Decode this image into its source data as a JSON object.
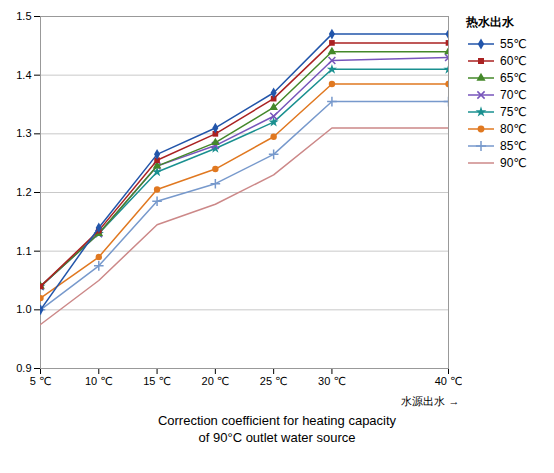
{
  "chart_data": {
    "type": "line",
    "xlabel": "水源出水",
    "legend_title": "热水出水",
    "caption": [
      "Correction coefficient for heating capacity",
      "of 90°C outlet water source"
    ],
    "x": [
      5,
      10,
      15,
      20,
      25,
      30,
      40
    ],
    "series": [
      {
        "name": "55℃",
        "color": "#2255AA",
        "marker": "diamond",
        "values": [
          1.0,
          1.14,
          1.265,
          1.31,
          1.37,
          1.47,
          1.47
        ]
      },
      {
        "name": "60℃",
        "color": "#AA2222",
        "marker": "square",
        "values": [
          1.04,
          1.135,
          1.255,
          1.3,
          1.36,
          1.455,
          1.455
        ]
      },
      {
        "name": "65℃",
        "color": "#44882A",
        "marker": "triangle",
        "values": [
          1.04,
          1.13,
          1.245,
          1.285,
          1.345,
          1.44,
          1.44
        ]
      },
      {
        "name": "70℃",
        "color": "#7755BB",
        "marker": "times",
        "values": [
          1.04,
          1.13,
          1.245,
          1.28,
          1.33,
          1.425,
          1.43
        ]
      },
      {
        "name": "75℃",
        "color": "#1A9090",
        "marker": "star",
        "values": [
          1.04,
          1.13,
          1.235,
          1.275,
          1.32,
          1.41,
          1.41
        ]
      },
      {
        "name": "80℃",
        "color": "#E07820",
        "marker": "circle",
        "values": [
          1.02,
          1.09,
          1.205,
          1.24,
          1.295,
          1.385,
          1.385
        ]
      },
      {
        "name": "85℃",
        "color": "#7799CC",
        "marker": "plus",
        "values": [
          1.0,
          1.075,
          1.185,
          1.215,
          1.265,
          1.355,
          1.355
        ]
      },
      {
        "name": "90℃",
        "color": "#CC8888",
        "marker": "none",
        "values": [
          0.975,
          1.05,
          1.145,
          1.18,
          1.23,
          1.31,
          1.31
        ]
      }
    ],
    "xlim": [
      5,
      40
    ],
    "xticks": [
      {
        "value": 5,
        "label": "5 ℃"
      },
      {
        "value": 10,
        "label": "10 ℃"
      },
      {
        "value": 15,
        "label": "15 ℃"
      },
      {
        "value": 20,
        "label": "20 ℃"
      },
      {
        "value": 25,
        "label": "25 ℃"
      },
      {
        "value": 30,
        "label": "30 ℃"
      },
      {
        "value": 40,
        "label": "40 ℃"
      }
    ],
    "ylim": [
      0.9,
      1.5
    ],
    "yticks": [
      0.9,
      {
        "value": 1.0,
        "label": "1.0"
      },
      1.1,
      1.2,
      1.3,
      1.4,
      1.5
    ],
    "grid": true,
    "legend": "right"
  }
}
